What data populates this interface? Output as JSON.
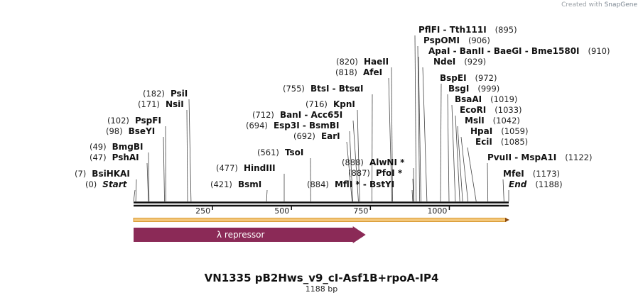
{
  "credit": {
    "prefix": "Created with",
    "brand": "SnapGene"
  },
  "plasmid": {
    "name": "VN1335 pB2Hws_v9_cI-Asf1B+rpoA-IP4",
    "length_label": "1188 bp",
    "length": 1188
  },
  "ticks": [
    {
      "pos": 250,
      "label": "250"
    },
    {
      "pos": 500,
      "label": "500"
    },
    {
      "pos": 750,
      "label": "750"
    },
    {
      "pos": 1000,
      "label": "1000"
    }
  ],
  "features": [
    {
      "name": "λ repressor",
      "start": 0,
      "end": 735,
      "color": "#8b2a57",
      "direction": "forward"
    }
  ],
  "colors": {
    "backbone": "#111111",
    "orf": "#e8b04a",
    "feature": "#8b2a57"
  },
  "sites": [
    {
      "pos_label": "(0)",
      "pos": 0,
      "name": "Start",
      "italic": true
    },
    {
      "pos_label": "(7)",
      "pos": 7,
      "name": "BsiHKAI"
    },
    {
      "pos_label": "(47)",
      "pos": 47,
      "name": "PshAI"
    },
    {
      "pos_label": "(49)",
      "pos": 49,
      "name": "BmgBI"
    },
    {
      "pos_label": "(98)",
      "pos": 98,
      "name": "BseYI"
    },
    {
      "pos_label": "(102)",
      "pos": 102,
      "name": "PspFI"
    },
    {
      "pos_label": "(171)",
      "pos": 171,
      "name": "NsiI"
    },
    {
      "pos_label": "(182)",
      "pos": 182,
      "name": "PsiI"
    },
    {
      "pos_label": "(421)",
      "pos": 421,
      "name": "BsmI"
    },
    {
      "pos_label": "(477)",
      "pos": 477,
      "name": "HindIII"
    },
    {
      "pos_label": "(561)",
      "pos": 561,
      "name": "TsoI"
    },
    {
      "pos_label": "(692)",
      "pos": 692,
      "name": "EarI"
    },
    {
      "pos_label": "(694)",
      "pos": 694,
      "name": "Esp3I  -  BsmBI"
    },
    {
      "pos_label": "(712)",
      "pos": 712,
      "name": "BanI  -  Acc65I"
    },
    {
      "pos_label": "(716)",
      "pos": 716,
      "name": "KpnI"
    },
    {
      "pos_label": "(755)",
      "pos": 755,
      "name": "BtsI  -  BtsαI"
    },
    {
      "pos_label": "(818)",
      "pos": 818,
      "name": "AfeI"
    },
    {
      "pos_label": "(820)",
      "pos": 820,
      "name": "HaeII"
    },
    {
      "pos_label": "(884)",
      "pos": 884,
      "name": "MflI *  -  BstYI"
    },
    {
      "pos_label": "(887)",
      "pos": 887,
      "name": "PfoI *"
    },
    {
      "pos_label": "(888)",
      "pos": 888,
      "name": "AlwNI *"
    },
    {
      "pos_label": "(895)",
      "pos": 895,
      "name": "PflFI  -  Tth111I"
    },
    {
      "pos_label": "(906)",
      "pos": 906,
      "name": "PspOMI"
    },
    {
      "pos_label": "(910)",
      "pos": 910,
      "name": "ApaI  -  BanII  -  BaeGI  -  Bme1580I"
    },
    {
      "pos_label": "(929)",
      "pos": 929,
      "name": "NdeI"
    },
    {
      "pos_label": "(972)",
      "pos": 972,
      "name": "BspEI"
    },
    {
      "pos_label": "(999)",
      "pos": 999,
      "name": "BsgI"
    },
    {
      "pos_label": "(1019)",
      "pos": 1019,
      "name": "BsaAI"
    },
    {
      "pos_label": "(1033)",
      "pos": 1033,
      "name": "EcoRI"
    },
    {
      "pos_label": "(1042)",
      "pos": 1042,
      "name": "MslI"
    },
    {
      "pos_label": "(1059)",
      "pos": 1059,
      "name": "HpaI"
    },
    {
      "pos_label": "(1085)",
      "pos": 1085,
      "name": "EciI"
    },
    {
      "pos_label": "(1122)",
      "pos": 1122,
      "name": "PvuII  -  MspA1I"
    },
    {
      "pos_label": "(1173)",
      "pos": 1173,
      "name": "MfeI"
    },
    {
      "pos_label": "(1188)",
      "pos": 1188,
      "name": "End",
      "italic": true
    }
  ]
}
